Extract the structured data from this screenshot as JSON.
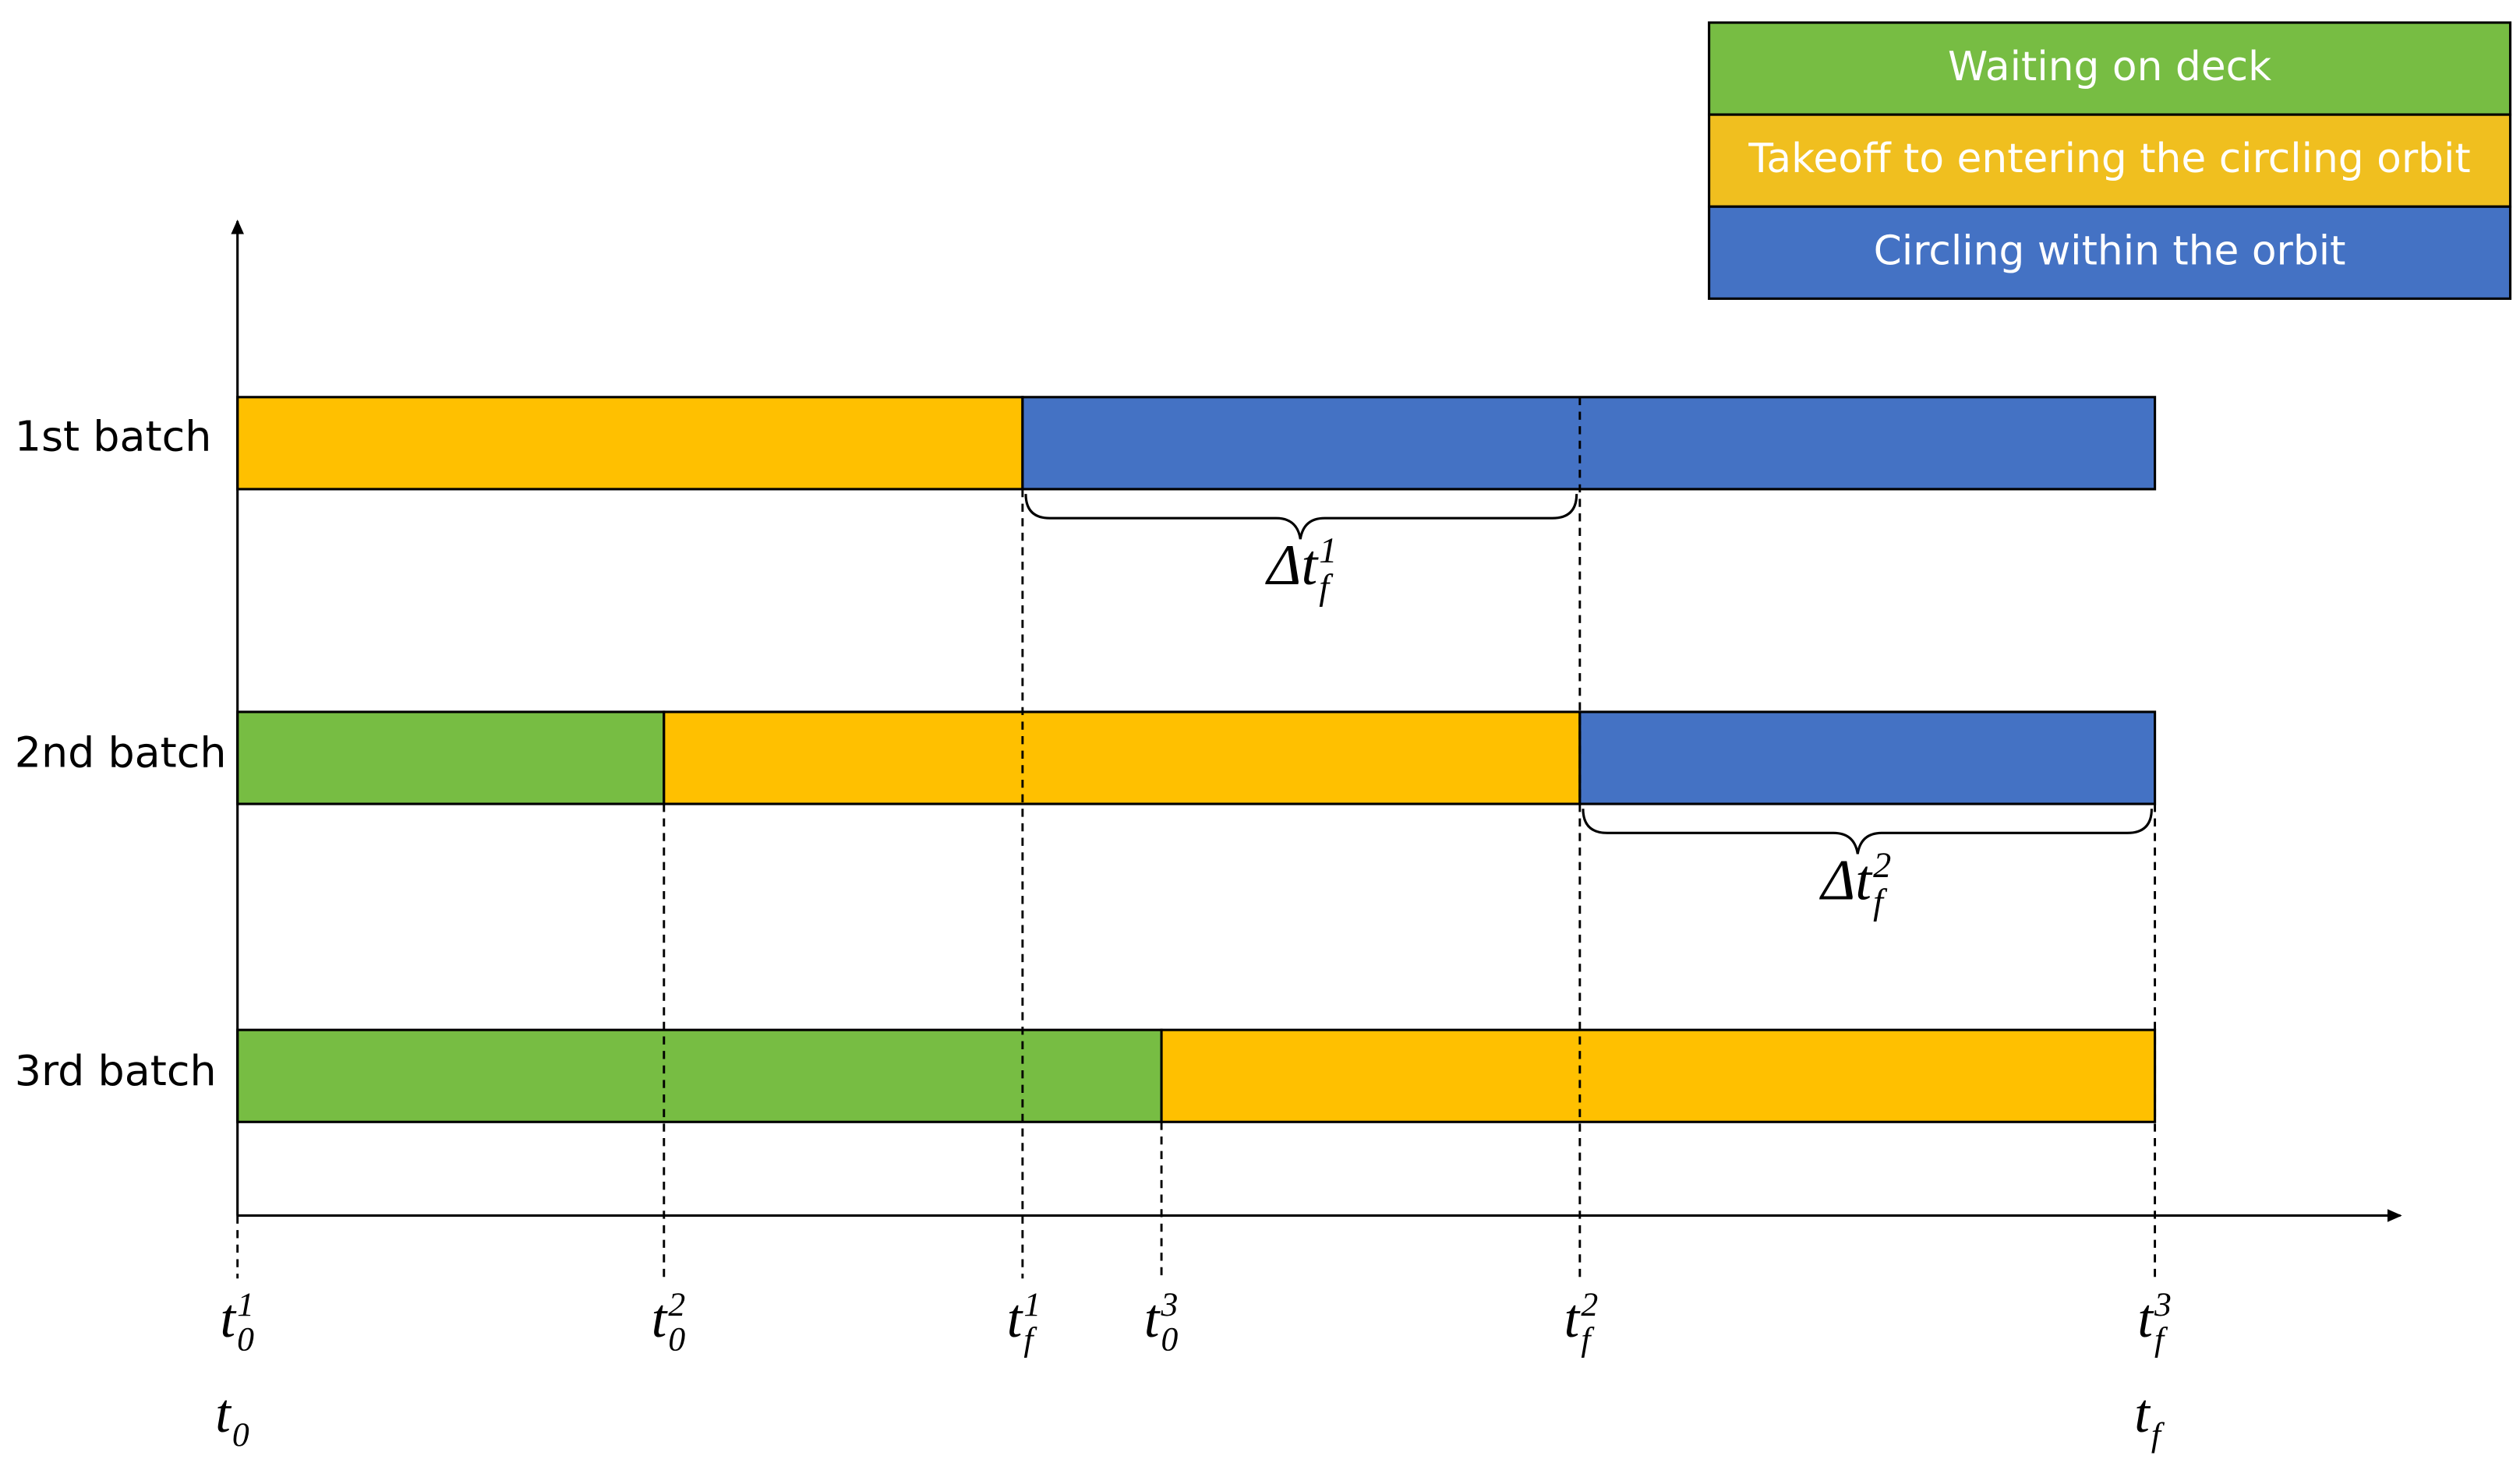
{
  "legend": [
    "Waiting on deck",
    "Takeoff to entering the circling orbit",
    "Circling within the orbit"
  ],
  "batches": [
    "1st batch",
    "2nd batch",
    "3rd batch"
  ],
  "ticks": [
    {
      "base": "t",
      "sub": "0",
      "sup": "1"
    },
    {
      "base": "t",
      "sub": "0",
      "sup": "2"
    },
    {
      "base": "t",
      "sub": "f",
      "sup": "1"
    },
    {
      "base": "t",
      "sub": "0",
      "sup": "3"
    },
    {
      "base": "t",
      "sub": "f",
      "sup": "2"
    },
    {
      "base": "t",
      "sub": "f",
      "sup": "3"
    }
  ],
  "bounds": [
    {
      "base": "t",
      "sub": "0"
    },
    {
      "base": "t",
      "sub": "f"
    }
  ],
  "intervals": [
    {
      "base": "Δt",
      "sub": "f",
      "sup": "1"
    },
    {
      "base": "Δt",
      "sub": "f",
      "sup": "2"
    }
  ]
}
